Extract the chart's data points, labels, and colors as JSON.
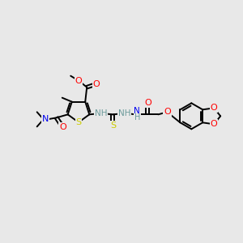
{
  "bg_color": "#e8e8e8",
  "atom_colors": {
    "C": "#000000",
    "H": "#6a9a9a",
    "N": "#0000ee",
    "O": "#ff0000",
    "S": "#cccc00"
  },
  "bond_color": "#000000",
  "figsize": [
    3.0,
    3.0
  ],
  "dpi": 100
}
